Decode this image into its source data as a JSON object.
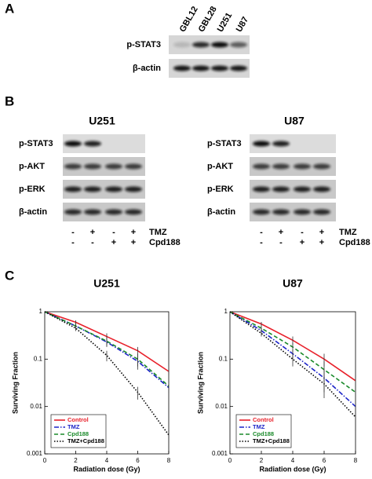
{
  "panels": {
    "a": "A",
    "b": "B",
    "c": "C"
  },
  "blot_a": {
    "lanes": [
      "GBL12",
      "GBL28",
      "U251",
      "U87"
    ],
    "rows": [
      "p-STAT3",
      "β-actin"
    ]
  },
  "blot_b": [
    {
      "title": "U251",
      "rows": [
        "p-STAT3",
        "p-AKT",
        "p-ERK",
        "β-actin"
      ]
    },
    {
      "title": "U87",
      "rows": [
        "p-STAT3",
        "p-AKT",
        "p-ERK",
        "β-actin"
      ]
    }
  ],
  "treatments": [
    {
      "name": "TMZ",
      "signs": [
        "-",
        "+",
        "-",
        "+"
      ]
    },
    {
      "name": "Cpd188",
      "signs": [
        "-",
        "-",
        "+",
        "+"
      ]
    }
  ],
  "chart_data": [
    {
      "type": "line",
      "title": "U251",
      "x_label": "Radiation dose (Gy)",
      "y_label": "Surviving Fraction",
      "x": [
        0,
        2,
        4,
        6,
        8
      ],
      "xlim": [
        0,
        8
      ],
      "xticks": [
        0,
        2,
        4,
        6,
        8
      ],
      "ylim": [
        0.001,
        1
      ],
      "yticks": [
        0.001,
        0.01,
        0.1,
        1
      ],
      "log_y": true,
      "legend": "lower left",
      "series": [
        {
          "name": "Control",
          "color": "#e8202a",
          "dash": "solid",
          "values": [
            1,
            0.6,
            0.3,
            0.15,
            0.055
          ],
          "errors": [
            0,
            0.06,
            0.05,
            0.03,
            0.01
          ]
        },
        {
          "name": "TMZ",
          "color": "#1c24c8",
          "dash": "dashdot",
          "values": [
            1,
            0.5,
            0.23,
            0.09,
            0.025
          ],
          "errors": [
            0,
            0.08,
            0.05,
            0.03,
            0.006
          ]
        },
        {
          "name": "Cpd188",
          "color": "#1a8a2a",
          "dash": "dashed",
          "values": [
            1,
            0.5,
            0.24,
            0.1,
            0.027
          ],
          "errors": [
            0,
            0.07,
            0.05,
            0.03,
            0.008
          ]
        },
        {
          "name": "TMZ+Cpd188",
          "color": "#000000",
          "dash": "dotted",
          "values": [
            1,
            0.45,
            0.12,
            0.02,
            0.0025
          ],
          "errors": [
            0,
            0.06,
            0.03,
            0.006,
            0.0008
          ]
        }
      ]
    },
    {
      "type": "line",
      "title": "U87",
      "x_label": "Radiation dose (Gy)",
      "y_label": "Surviving Fraction",
      "x": [
        0,
        2,
        4,
        6,
        8
      ],
      "xlim": [
        0,
        8
      ],
      "xticks": [
        0,
        2,
        4,
        6,
        8
      ],
      "ylim": [
        0.001,
        1
      ],
      "yticks": [
        0.001,
        0.01,
        0.1,
        1
      ],
      "log_y": true,
      "legend": "lower left",
      "series": [
        {
          "name": "Control",
          "color": "#e8202a",
          "dash": "solid",
          "values": [
            1,
            0.55,
            0.25,
            0.1,
            0.035
          ],
          "errors": [
            0,
            0.06,
            0.05,
            0.03,
            0.01
          ]
        },
        {
          "name": "TMZ",
          "color": "#1c24c8",
          "dash": "dashdot",
          "values": [
            1,
            0.4,
            0.13,
            0.04,
            0.01
          ],
          "errors": [
            0,
            0.05,
            0.03,
            0.02,
            0.004
          ]
        },
        {
          "name": "Cpd188",
          "color": "#1a8a2a",
          "dash": "dashed",
          "values": [
            1,
            0.45,
            0.18,
            0.06,
            0.02
          ],
          "errors": [
            0,
            0.06,
            0.04,
            0.03,
            0.008
          ]
        },
        {
          "name": "TMZ+Cpd188",
          "color": "#000000",
          "dash": "dotted",
          "values": [
            1,
            0.35,
            0.1,
            0.03,
            0.006
          ],
          "errors": [
            0,
            0.05,
            0.03,
            0.015,
            0.003
          ]
        }
      ]
    }
  ]
}
